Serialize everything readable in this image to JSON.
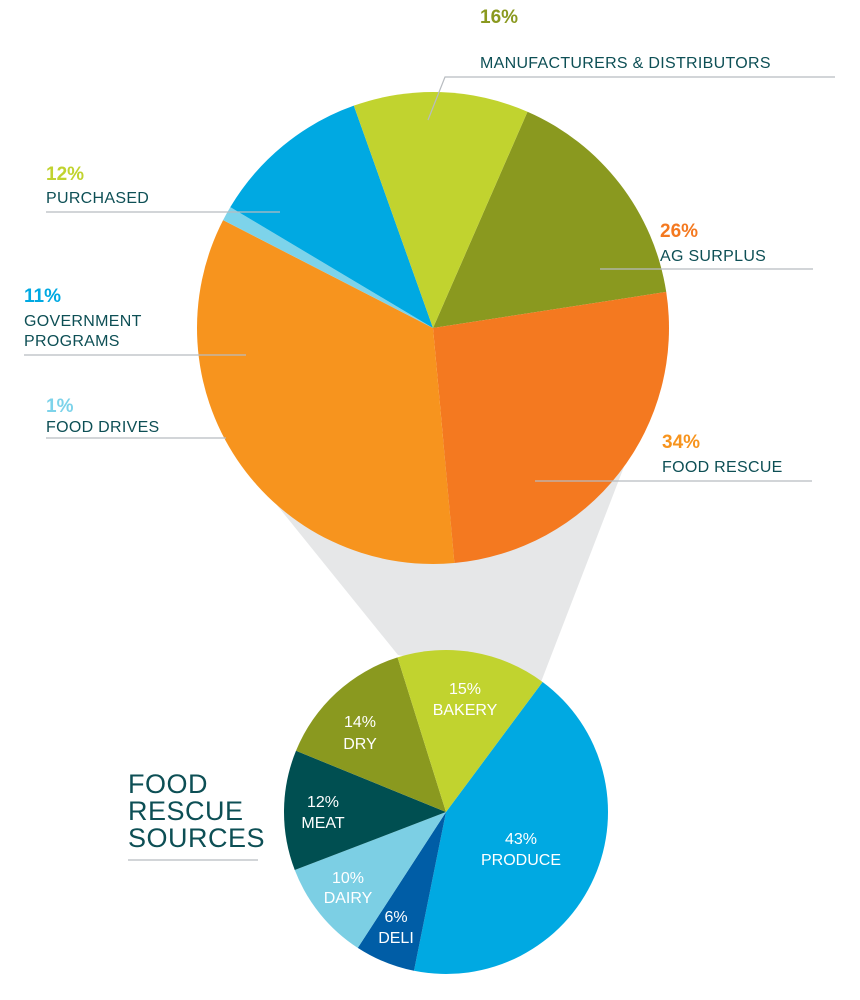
{
  "chart_data": [
    {
      "type": "pie",
      "slices": [
        {
          "pct": "16%",
          "label": "MANUFACTURERS & DISTRIBUTORS",
          "value": 16,
          "color": "#8a991f"
        },
        {
          "pct": "26%",
          "label": "AG SURPLUS",
          "value": 26,
          "color": "#f47920"
        },
        {
          "pct": "34%",
          "label": "FOOD RESCUE",
          "value": 34,
          "color": "#f7941e"
        },
        {
          "pct": "1%",
          "label": "FOOD DRIVES",
          "value": 1,
          "color": "#7dd3ea"
        },
        {
          "pct": "11%",
          "label": "GOVERNMENT PROGRAMS",
          "label_lines": [
            "GOVERNMENT",
            "PROGRAMS"
          ],
          "value": 11,
          "color": "#00a9e2"
        },
        {
          "pct": "12%",
          "label": "PURCHASED",
          "value": 12,
          "color": "#c1d32f"
        }
      ]
    },
    {
      "type": "pie",
      "title": "FOOD RESCUE SOURCES",
      "title_lines": [
        "FOOD",
        "RESCUE",
        "SOURCES"
      ],
      "slices": [
        {
          "pct": "43%",
          "label": "PRODUCE",
          "value": 43,
          "color": "#00a9e2"
        },
        {
          "pct": "6%",
          "label": "DELI",
          "value": 6,
          "color": "#005da6"
        },
        {
          "pct": "10%",
          "label": "DAIRY",
          "value": 10,
          "color": "#7ccfe4"
        },
        {
          "pct": "12%",
          "label": "MEAT",
          "value": 12,
          "color": "#004f51"
        },
        {
          "pct": "14%",
          "label": "DRY",
          "value": 14,
          "color": "#8a991f"
        },
        {
          "pct": "15%",
          "label": "BAKERY",
          "value": 15,
          "color": "#c1d32f"
        }
      ]
    }
  ],
  "colors": {
    "label_text": "#0d4f55",
    "leader_line": "#b8bcc0",
    "connector": "#e6e7e8"
  }
}
